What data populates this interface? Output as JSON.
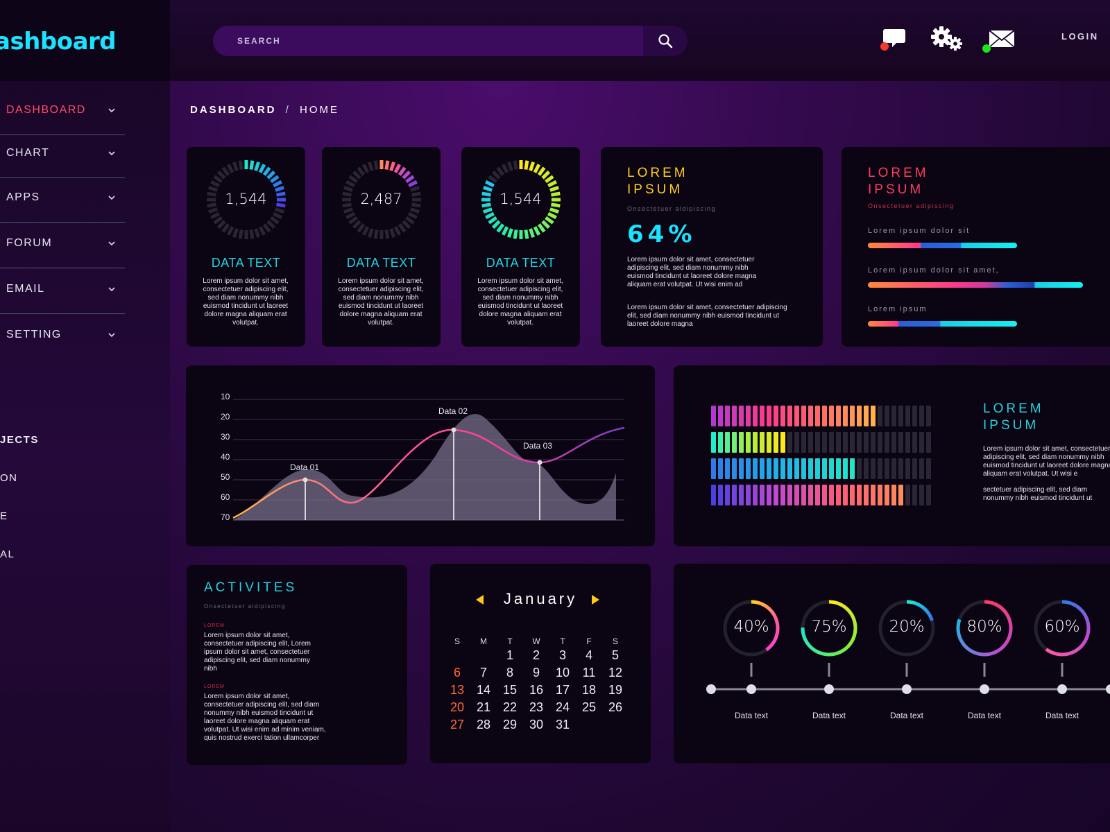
{
  "app": {
    "logo_text": "ashboard"
  },
  "search": {
    "placeholder": "SEARCH"
  },
  "topbar": {
    "login_label": "LOGIN"
  },
  "sidebar": {
    "items": [
      {
        "label": "DASHBOARD",
        "active": true
      },
      {
        "label": "CHART"
      },
      {
        "label": "APPS"
      },
      {
        "label": "FORUM"
      },
      {
        "label": "EMAIL"
      },
      {
        "label": "SETTING"
      }
    ],
    "section_title": "JECTS",
    "sub_items": [
      "ON",
      "E",
      "AL"
    ]
  },
  "breadcrumb": {
    "root": "DASHBOARD",
    "separator": "/",
    "current": "HOME"
  },
  "stat_cards": [
    {
      "value": "1,544",
      "title": "DATA TEXT",
      "text": "Lorem ipsum dolor sit amet, consectetuer adipiscing elit, sed diam nonummy nibh euismod tincidunt ut laoreet dolore magna aliquam erat volutpat.",
      "progress": 0.3
    },
    {
      "value": "2,487",
      "title": "DATA TEXT",
      "text": "Lorem ipsum dolor sit amet, consectetuer adipiscing elit, sed diam nonummy nibh euismod tincidunt ut laoreet dolore magna aliquam erat volutpat.",
      "progress": 0.2
    },
    {
      "value": "1,544",
      "title": "DATA TEXT",
      "text": "Lorem ipsum dolor sit amet, consectetuer adipiscing elit, sed diam nonummy nibh euismod tincidunt ut laoreet dolore magna aliquam erat volutpat.",
      "progress": 0.85
    }
  ],
  "percent_card": {
    "title_line1": "LOREM",
    "title_line2": "IPSUM",
    "subtitle": "Onsectetuer aldipiscing",
    "percent": "64%",
    "para1": "Lorem ipsum dolor sit amet, consectetuer adipiscing elit, sed diam nonummy nibh euismod tincidunt ut laoreet dolore magna aliquam erat volutpat. Ut wisi enim ad",
    "para2": "Lorem ipsum dolor sit amet, consectetuer adipiscing elit, sed diam nonummy nibh euismod tincidunt ut laoreet dolore magna"
  },
  "bars_card": {
    "title_line1": "LOREM",
    "title_line2": "IPSUM",
    "subtitle": "Onsectetuer adipiscing",
    "bars": [
      {
        "label": "Lorem ipsum dolor sit"
      },
      {
        "label": "Lorem ipsum dolor sit amet,"
      },
      {
        "label": "Lorem ipsum"
      }
    ]
  },
  "line_chart": {
    "y_ticks": [
      "10",
      "20",
      "30",
      "40",
      "50",
      "60",
      "70"
    ],
    "annotations": [
      {
        "label": "Data 01"
      },
      {
        "label": "Data 02"
      },
      {
        "label": "Data 03"
      }
    ]
  },
  "equalizer_card": {
    "title_line1": "LOREM",
    "title_line2": "IPSUM",
    "para1": "Lorem ipsum dolor sit amet, consectetuer adipiscing elit, sed diam nonummy nibh euismod tincidunt ut laoreet dolore magna aliquam erat volutpat. Ut wisi e",
    "para2": "sectetuer adipiscing elit, sed diam nonummy nibh euismod tincidunt ut",
    "rows": [
      {
        "filled": 24,
        "total": 32
      },
      {
        "filled": 11,
        "total": 32
      },
      {
        "filled": 21,
        "total": 32
      },
      {
        "filled": 28,
        "total": 32
      }
    ]
  },
  "activities": {
    "title": "ACTIVITES",
    "subtitle": "Onsectetuer aldipiscing",
    "entries": [
      {
        "tag": "LOREM",
        "text": "Lorem ipsum dolor sit amet, consectetuer adipiscing elit, Lorem ipsum dolor sit amet, consectetuer adipiscing elit, sed diam nonummy nibh"
      },
      {
        "tag": "LOREM",
        "text": "Lorem ipsum dolor sit amet, consectetuer adipiscing elit, sed diam nonummy nibh euismod tincidunt ut laoreet dolore magna aliquam erat volutpat. Ut wisi enim ad minim veniam, quis nostrud exerci tation ullamcorper"
      }
    ]
  },
  "calendar": {
    "month": "January",
    "weekdays": [
      "S",
      "M",
      "T",
      "W",
      "T",
      "F",
      "S"
    ],
    "weeks": [
      [
        "",
        "",
        "1",
        "2",
        "3",
        "4",
        "5"
      ],
      [
        "6",
        "7",
        "8",
        "9",
        "10",
        "11",
        "12"
      ],
      [
        "13",
        "14",
        "15",
        "16",
        "17",
        "18",
        "19"
      ],
      [
        "20",
        "21",
        "22",
        "23",
        "24",
        "25",
        "26"
      ],
      [
        "27",
        "28",
        "29",
        "30",
        "31",
        "",
        ""
      ]
    ]
  },
  "progress_rings": [
    {
      "label": "40%",
      "value": 0.4,
      "caption": "Data text"
    },
    {
      "label": "75%",
      "value": 0.75,
      "caption": "Data text"
    },
    {
      "label": "20%",
      "value": 0.2,
      "caption": "Data text"
    },
    {
      "label": "80%",
      "value": 0.8,
      "caption": "Data text"
    },
    {
      "label": "60%",
      "value": 0.6,
      "caption": "Data text"
    }
  ],
  "colors": {
    "accent_cyan": "#19e3ff",
    "accent_red": "#ff4d6a",
    "accent_yellow": "#ffd21a"
  }
}
